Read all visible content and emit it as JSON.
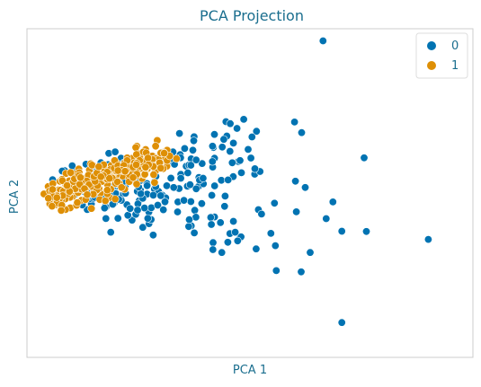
{
  "chart_data": {
    "type": "scatter",
    "title": "PCA Projection",
    "xlabel": "PCA 1",
    "ylabel": "PCA 2",
    "xlim": [
      0,
      1
    ],
    "ylim": [
      0,
      1
    ],
    "xticks": false,
    "yticks": false,
    "grid": false,
    "legend": {
      "placement": "top-right"
    },
    "series": [
      {
        "name": "0",
        "color": "#0173b2",
        "points": [
          [
            0.664,
            0.963
          ],
          [
            0.756,
            0.607
          ],
          [
            0.616,
            0.684
          ],
          [
            0.6,
            0.716
          ],
          [
            0.9,
            0.359
          ],
          [
            0.671,
            0.422
          ],
          [
            0.706,
            0.106
          ],
          [
            0.604,
            0.443
          ],
          [
            0.559,
            0.264
          ],
          [
            0.463,
            0.414
          ],
          [
            0.555,
            0.469
          ],
          [
            0.602,
            0.536
          ],
          [
            0.511,
            0.574
          ],
          [
            0.526,
            0.436
          ],
          [
            0.463,
            0.652
          ],
          [
            0.438,
            0.64
          ],
          [
            0.451,
            0.54
          ],
          [
            0.395,
            0.545
          ],
          [
            0.467,
            0.381
          ],
          [
            0.364,
            0.419
          ],
          [
            0.417,
            0.328
          ],
          [
            0.514,
            0.33
          ],
          [
            0.635,
            0.319
          ],
          [
            0.686,
            0.473
          ],
          [
            0.624,
            0.517
          ],
          [
            0.706,
            0.384
          ],
          [
            0.761,
            0.383
          ],
          [
            0.615,
            0.26
          ],
          [
            0.557,
            0.34
          ],
          [
            0.374,
            0.659
          ],
          [
            0.3,
            0.602
          ],
          [
            0.329,
            0.517
          ],
          [
            0.215,
            0.534
          ],
          [
            0.271,
            0.423
          ],
          [
            0.352,
            0.478
          ],
          [
            0.283,
            0.372
          ],
          [
            0.188,
            0.381
          ],
          [
            0.248,
            0.448
          ],
          [
            0.3,
            0.492
          ],
          [
            0.392,
            0.468
          ]
        ],
        "cluster": {
          "x_center": 0.3,
          "y_center": 0.5,
          "x_spread": 0.1,
          "y_spread": 0.09,
          "count": 220
        }
      },
      {
        "name": "1",
        "color": "#de8f05",
        "points": [
          [
            0.3,
            0.576
          ],
          [
            0.286,
            0.532
          ],
          [
            0.203,
            0.534
          ],
          [
            0.22,
            0.566
          ],
          [
            0.238,
            0.547
          ],
          [
            0.161,
            0.58
          ],
          [
            0.18,
            0.509
          ],
          [
            0.12,
            0.547
          ],
          [
            0.09,
            0.523
          ],
          [
            0.067,
            0.486
          ],
          [
            0.048,
            0.484
          ],
          [
            0.113,
            0.471
          ],
          [
            0.135,
            0.495
          ],
          [
            0.212,
            0.517
          ],
          [
            0.245,
            0.586
          ]
        ],
        "cluster": {
          "x_center": 0.13,
          "y_center": 0.52,
          "x_spread": 0.05,
          "y_spread": 0.03,
          "count": 260
        }
      }
    ]
  }
}
